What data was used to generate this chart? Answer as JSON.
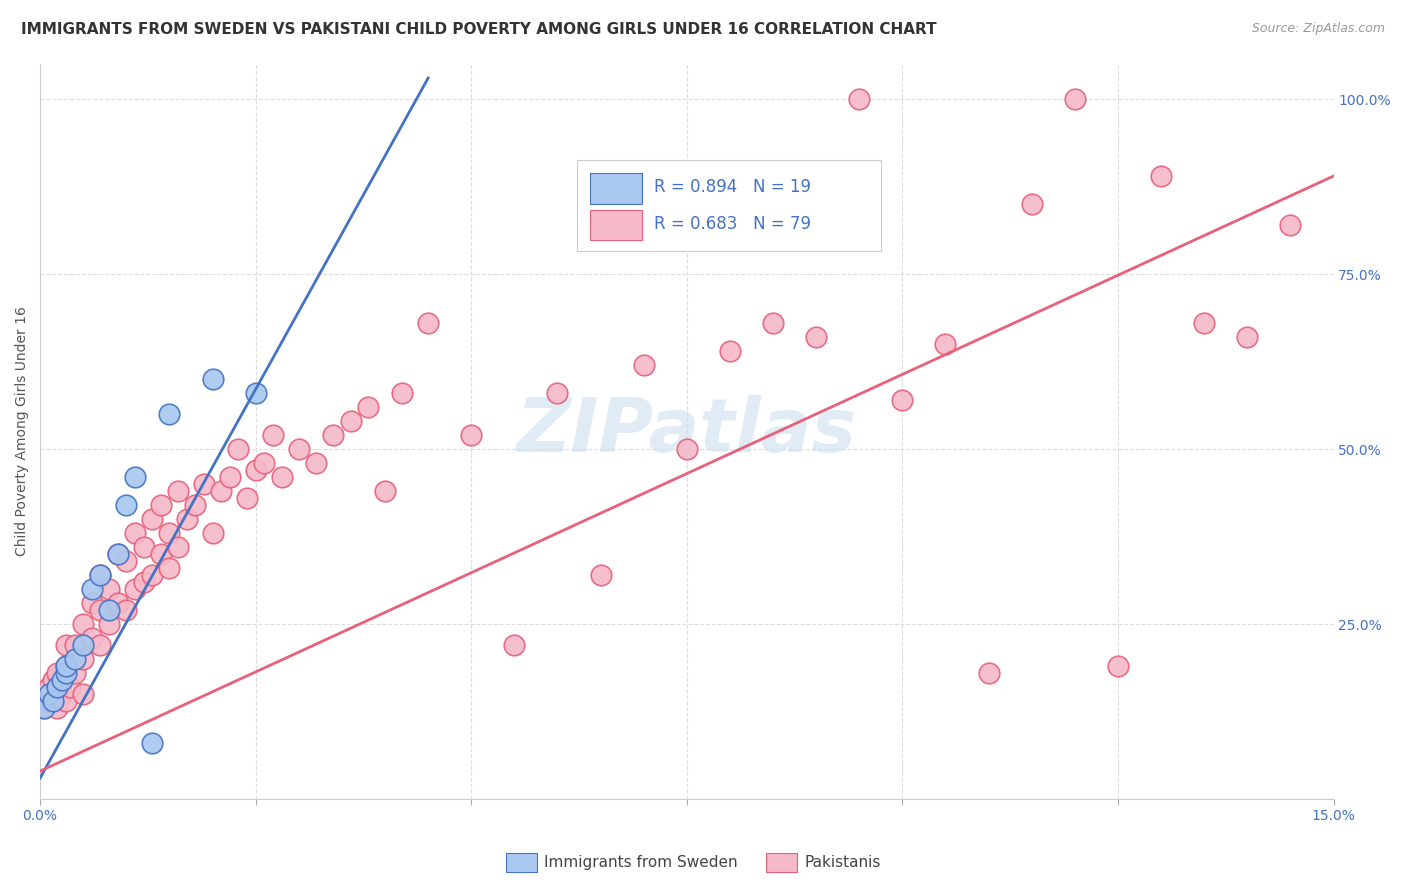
{
  "title": "IMMIGRANTS FROM SWEDEN VS PAKISTANI CHILD POVERTY AMONG GIRLS UNDER 16 CORRELATION CHART",
  "source": "Source: ZipAtlas.com",
  "ylabel": "Child Poverty Among Girls Under 16",
  "xlim": [
    0.0,
    0.15
  ],
  "ylim": [
    0.0,
    1.05
  ],
  "xticks": [
    0.0,
    0.025,
    0.05,
    0.075,
    0.1,
    0.125,
    0.15
  ],
  "xticklabels": [
    "0.0%",
    "",
    "",
    "",
    "",
    "",
    "15.0%"
  ],
  "yticks": [
    0.0,
    0.25,
    0.5,
    0.75,
    1.0
  ],
  "yticklabels": [
    "",
    "25.0%",
    "50.0%",
    "75.0%",
    "100.0%"
  ],
  "watermark": "ZIPatlas",
  "color_sweden": "#A8C8F0",
  "color_pakistan": "#F5B8C8",
  "color_sweden_line": "#4472C4",
  "color_pakistan_line": "#E8607A",
  "color_axis_labels": "#4472C4",
  "grid_color": "#DDDDDD",
  "background_color": "#FFFFFF",
  "title_fontsize": 11,
  "axis_label_fontsize": 10,
  "tick_fontsize": 10,
  "sweden_x": [
    0.0005,
    0.001,
    0.0015,
    0.002,
    0.0025,
    0.003,
    0.003,
    0.004,
    0.005,
    0.006,
    0.007,
    0.008,
    0.009,
    0.01,
    0.011,
    0.013,
    0.015,
    0.02,
    0.025
  ],
  "sweden_y": [
    0.13,
    0.15,
    0.14,
    0.16,
    0.17,
    0.18,
    0.19,
    0.2,
    0.22,
    0.3,
    0.32,
    0.27,
    0.35,
    0.42,
    0.46,
    0.08,
    0.55,
    0.6,
    0.58
  ],
  "sweden_line_x": [
    0.0,
    0.045
  ],
  "sweden_line_y": [
    0.03,
    1.03
  ],
  "pakistan_line_x": [
    0.0,
    0.15
  ],
  "pakistan_line_y": [
    0.04,
    0.89
  ],
  "pakistan_x": [
    0.0005,
    0.001,
    0.001,
    0.0015,
    0.002,
    0.002,
    0.0025,
    0.003,
    0.003,
    0.003,
    0.0035,
    0.004,
    0.004,
    0.005,
    0.005,
    0.005,
    0.006,
    0.006,
    0.007,
    0.007,
    0.007,
    0.008,
    0.008,
    0.009,
    0.009,
    0.01,
    0.01,
    0.011,
    0.011,
    0.012,
    0.012,
    0.013,
    0.013,
    0.014,
    0.014,
    0.015,
    0.015,
    0.016,
    0.016,
    0.017,
    0.018,
    0.019,
    0.02,
    0.021,
    0.022,
    0.023,
    0.024,
    0.025,
    0.026,
    0.027,
    0.028,
    0.03,
    0.032,
    0.034,
    0.036,
    0.038,
    0.04,
    0.042,
    0.045,
    0.05,
    0.055,
    0.06,
    0.065,
    0.07,
    0.075,
    0.08,
    0.085,
    0.09,
    0.095,
    0.1,
    0.105,
    0.11,
    0.115,
    0.12,
    0.125,
    0.13,
    0.135,
    0.14,
    0.145
  ],
  "pakistan_y": [
    0.13,
    0.14,
    0.16,
    0.17,
    0.13,
    0.18,
    0.15,
    0.14,
    0.19,
    0.22,
    0.16,
    0.18,
    0.22,
    0.15,
    0.2,
    0.25,
    0.23,
    0.28,
    0.22,
    0.27,
    0.32,
    0.25,
    0.3,
    0.28,
    0.35,
    0.27,
    0.34,
    0.3,
    0.38,
    0.31,
    0.36,
    0.32,
    0.4,
    0.35,
    0.42,
    0.33,
    0.38,
    0.36,
    0.44,
    0.4,
    0.42,
    0.45,
    0.38,
    0.44,
    0.46,
    0.5,
    0.43,
    0.47,
    0.48,
    0.52,
    0.46,
    0.5,
    0.48,
    0.52,
    0.54,
    0.56,
    0.44,
    0.58,
    0.68,
    0.52,
    0.22,
    0.58,
    0.32,
    0.62,
    0.5,
    0.64,
    0.68,
    0.66,
    1.0,
    0.57,
    0.65,
    0.18,
    0.85,
    1.0,
    0.19,
    0.89,
    0.68,
    0.66,
    0.82
  ]
}
